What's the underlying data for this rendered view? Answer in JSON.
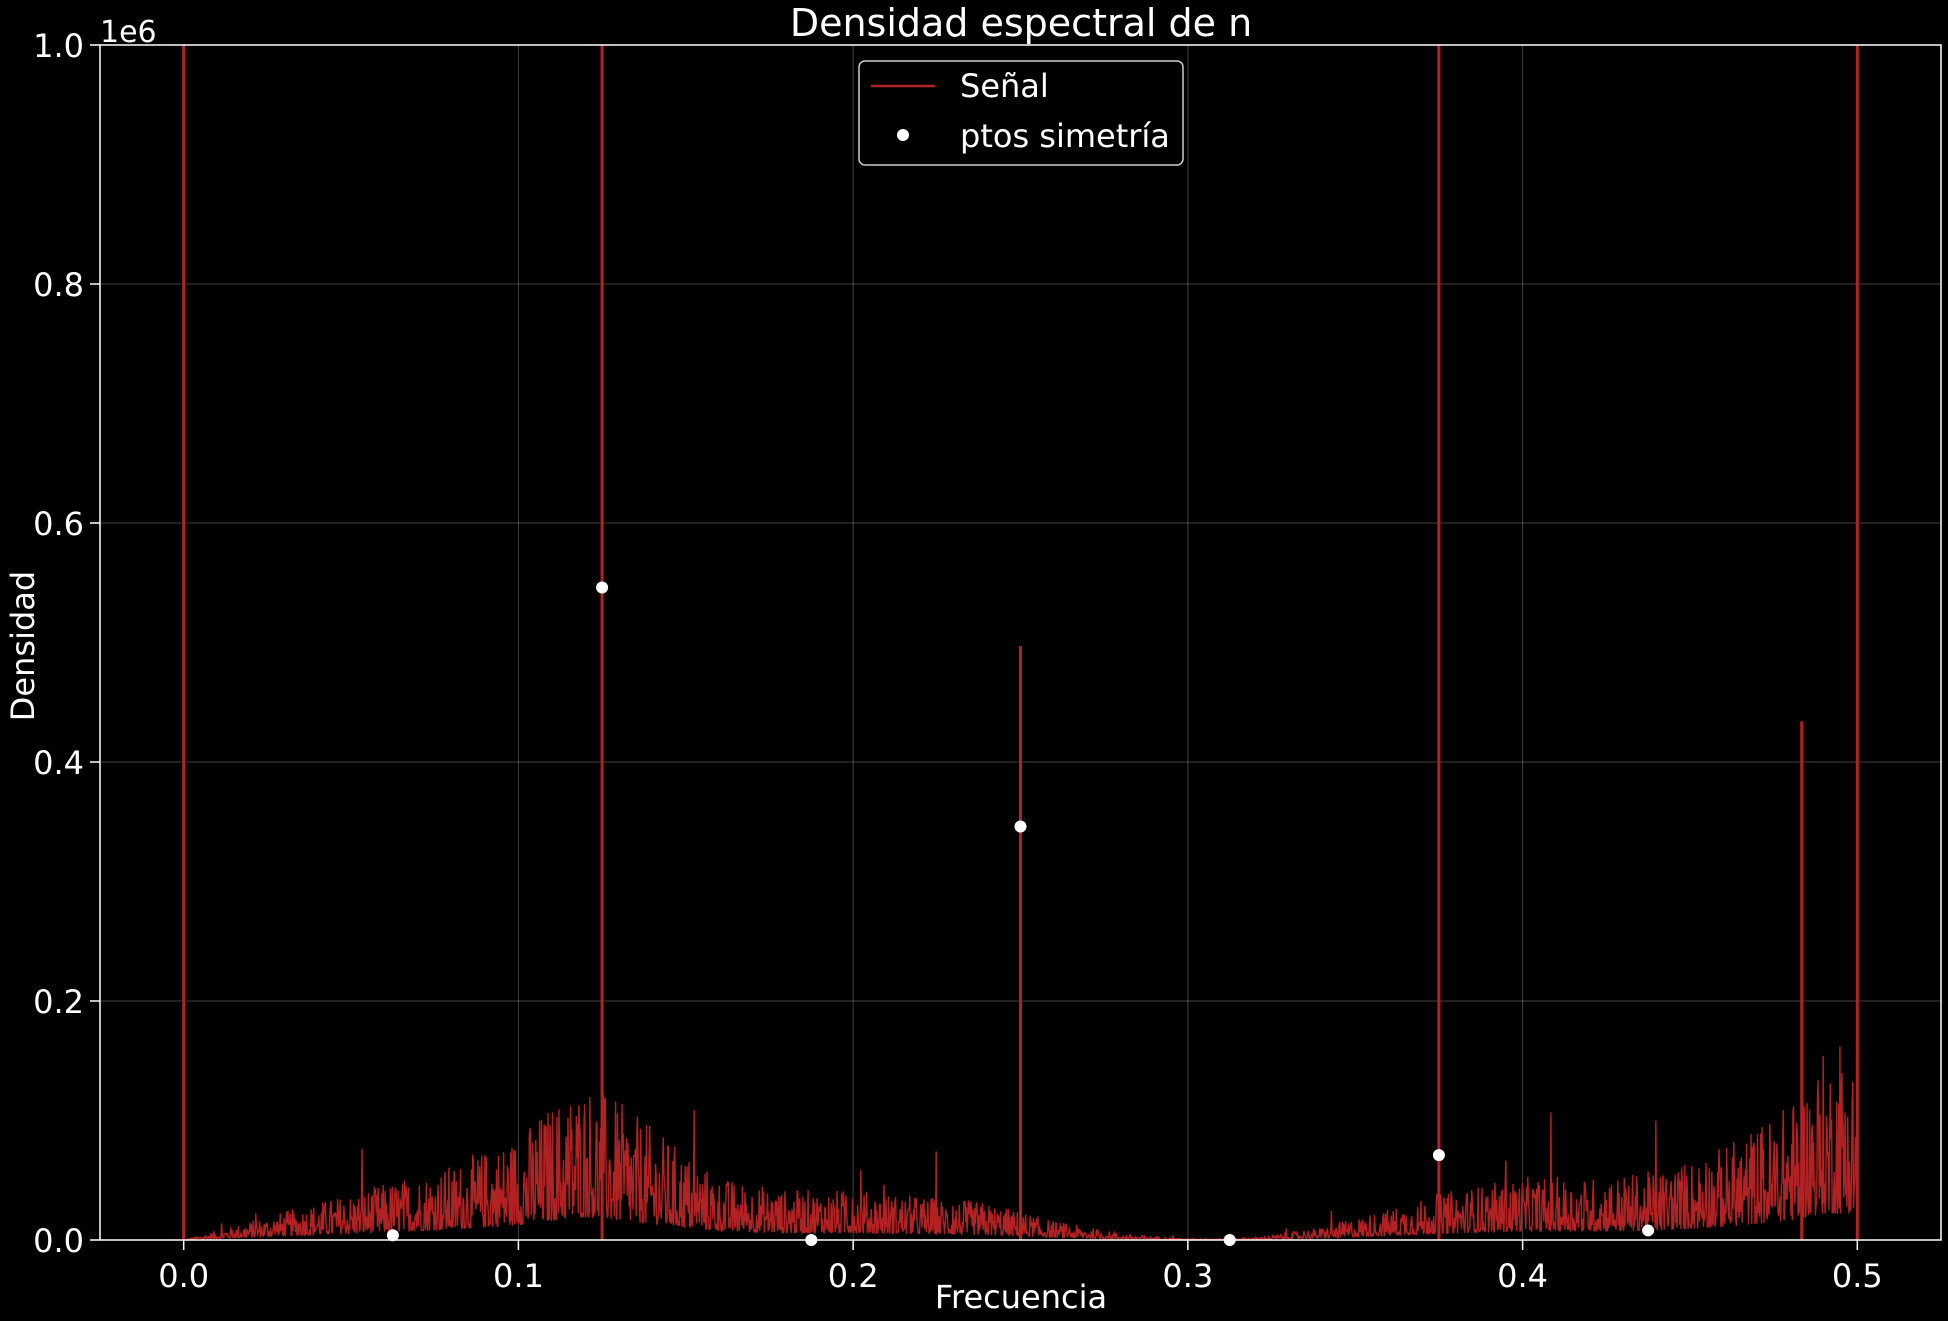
{
  "chart_data": {
    "type": "line",
    "title": "Densidad espectral de n",
    "xlabel": "Frecuencia",
    "ylabel": "Densidad",
    "y_offset_label": "1e6",
    "xlim": [
      -0.025,
      0.525
    ],
    "ylim": [
      0,
      1000000
    ],
    "grid": true,
    "legend_placement": "upper-center",
    "background": "#000000",
    "x_ticks": [
      0.0,
      0.1,
      0.2,
      0.3,
      0.4,
      0.5
    ],
    "x_tick_labels": [
      "0.0",
      "0.1",
      "0.2",
      "0.3",
      "0.4",
      "0.5"
    ],
    "y_ticks": [
      0,
      200000,
      400000,
      600000,
      800000,
      1000000
    ],
    "y_tick_labels": [
      "0.0",
      "0.2",
      "0.4",
      "0.6",
      "0.8",
      "1.0"
    ],
    "series": [
      {
        "name": "Señal",
        "kind": "line",
        "color": "#b22222",
        "peaks": [
          {
            "x": 0.0,
            "y": 1000000
          },
          {
            "x": 0.125,
            "y": 1000000
          },
          {
            "x": 0.25,
            "y": 497000
          },
          {
            "x": 0.375,
            "y": 1000000
          },
          {
            "x": 0.4834,
            "y": 434000
          },
          {
            "x": 0.5,
            "y": 1000000
          }
        ],
        "envelope": [
          {
            "x": 0.0,
            "y": 0
          },
          {
            "x": 0.02,
            "y": 15000
          },
          {
            "x": 0.04,
            "y": 30000
          },
          {
            "x": 0.06,
            "y": 45000
          },
          {
            "x": 0.08,
            "y": 60000
          },
          {
            "x": 0.1,
            "y": 85000
          },
          {
            "x": 0.11,
            "y": 110000
          },
          {
            "x": 0.12,
            "y": 130000
          },
          {
            "x": 0.13,
            "y": 110000
          },
          {
            "x": 0.14,
            "y": 90000
          },
          {
            "x": 0.16,
            "y": 50000
          },
          {
            "x": 0.18,
            "y": 40000
          },
          {
            "x": 0.2,
            "y": 40000
          },
          {
            "x": 0.22,
            "y": 35000
          },
          {
            "x": 0.24,
            "y": 30000
          },
          {
            "x": 0.26,
            "y": 15000
          },
          {
            "x": 0.28,
            "y": 5000
          },
          {
            "x": 0.3,
            "y": 1000
          },
          {
            "x": 0.32,
            "y": 2000
          },
          {
            "x": 0.34,
            "y": 10000
          },
          {
            "x": 0.36,
            "y": 25000
          },
          {
            "x": 0.38,
            "y": 40000
          },
          {
            "x": 0.4,
            "y": 50000
          },
          {
            "x": 0.42,
            "y": 50000
          },
          {
            "x": 0.44,
            "y": 55000
          },
          {
            "x": 0.46,
            "y": 75000
          },
          {
            "x": 0.48,
            "y": 110000
          },
          {
            "x": 0.49,
            "y": 150000
          },
          {
            "x": 0.5,
            "y": 150000
          }
        ]
      },
      {
        "name": "ptos simetría",
        "kind": "scatter",
        "color": "#ffffff",
        "points": [
          {
            "x": 0.0625,
            "y": 4000
          },
          {
            "x": 0.125,
            "y": 546000
          },
          {
            "x": 0.1875,
            "y": 0
          },
          {
            "x": 0.25,
            "y": 346000
          },
          {
            "x": 0.3125,
            "y": 0
          },
          {
            "x": 0.375,
            "y": 71000
          },
          {
            "x": 0.4375,
            "y": 8000
          }
        ]
      }
    ]
  }
}
